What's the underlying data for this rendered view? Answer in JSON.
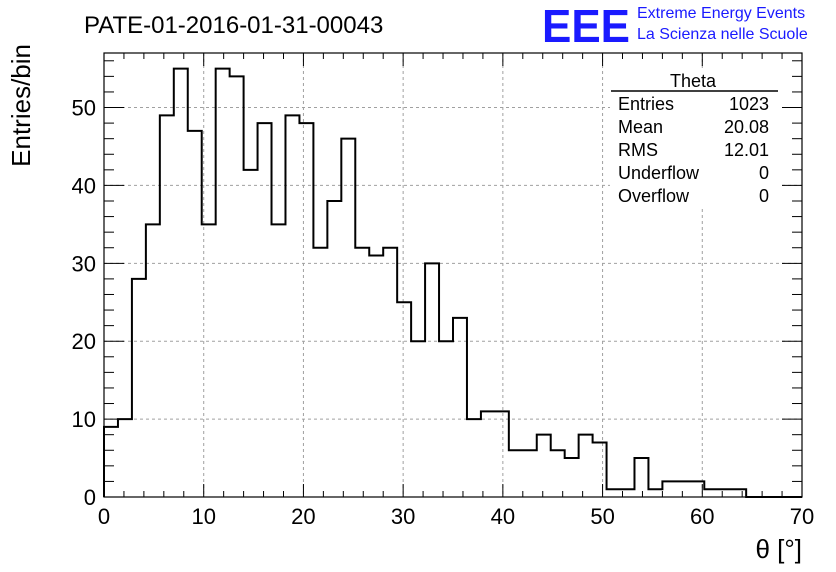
{
  "chart_data": {
    "type": "bar",
    "histogram": true,
    "title": "PATE-01-2016-01-31-00043",
    "xlabel": "θ [°]",
    "ylabel": "Entries/bin",
    "xlim": [
      0,
      70
    ],
    "ylim": [
      0,
      57
    ],
    "grid": true,
    "bin_width": 1.4,
    "x_ticks": [
      0,
      10,
      20,
      30,
      40,
      50,
      60,
      70
    ],
    "y_ticks": [
      0,
      10,
      20,
      30,
      40,
      50
    ],
    "values": [
      9,
      10,
      28,
      35,
      49,
      55,
      47,
      35,
      55,
      54,
      42,
      48,
      35,
      49,
      48,
      32,
      38,
      46,
      32,
      31,
      32,
      25,
      20,
      30,
      20,
      23,
      10,
      11,
      11,
      6,
      6,
      8,
      6,
      5,
      8,
      7,
      1,
      1,
      5,
      1,
      2,
      2,
      2,
      1,
      1,
      1,
      0,
      0,
      0,
      0
    ]
  },
  "stats_box": {
    "title": "Theta",
    "rows": [
      {
        "label": "Entries",
        "value": "1023"
      },
      {
        "label": "Mean",
        "value": "20.08"
      },
      {
        "label": "RMS",
        "value": "12.01"
      },
      {
        "label": "Underflow",
        "value": "0"
      },
      {
        "label": "Overflow",
        "value": "0"
      }
    ]
  },
  "logo": {
    "mark": "EEE",
    "line1": "Extreme Energy Events",
    "line2": "La Scienza nelle Scuole"
  },
  "colors": {
    "line": "#000000",
    "grid": "#a0a0a0",
    "logo": "#1a1aff"
  }
}
